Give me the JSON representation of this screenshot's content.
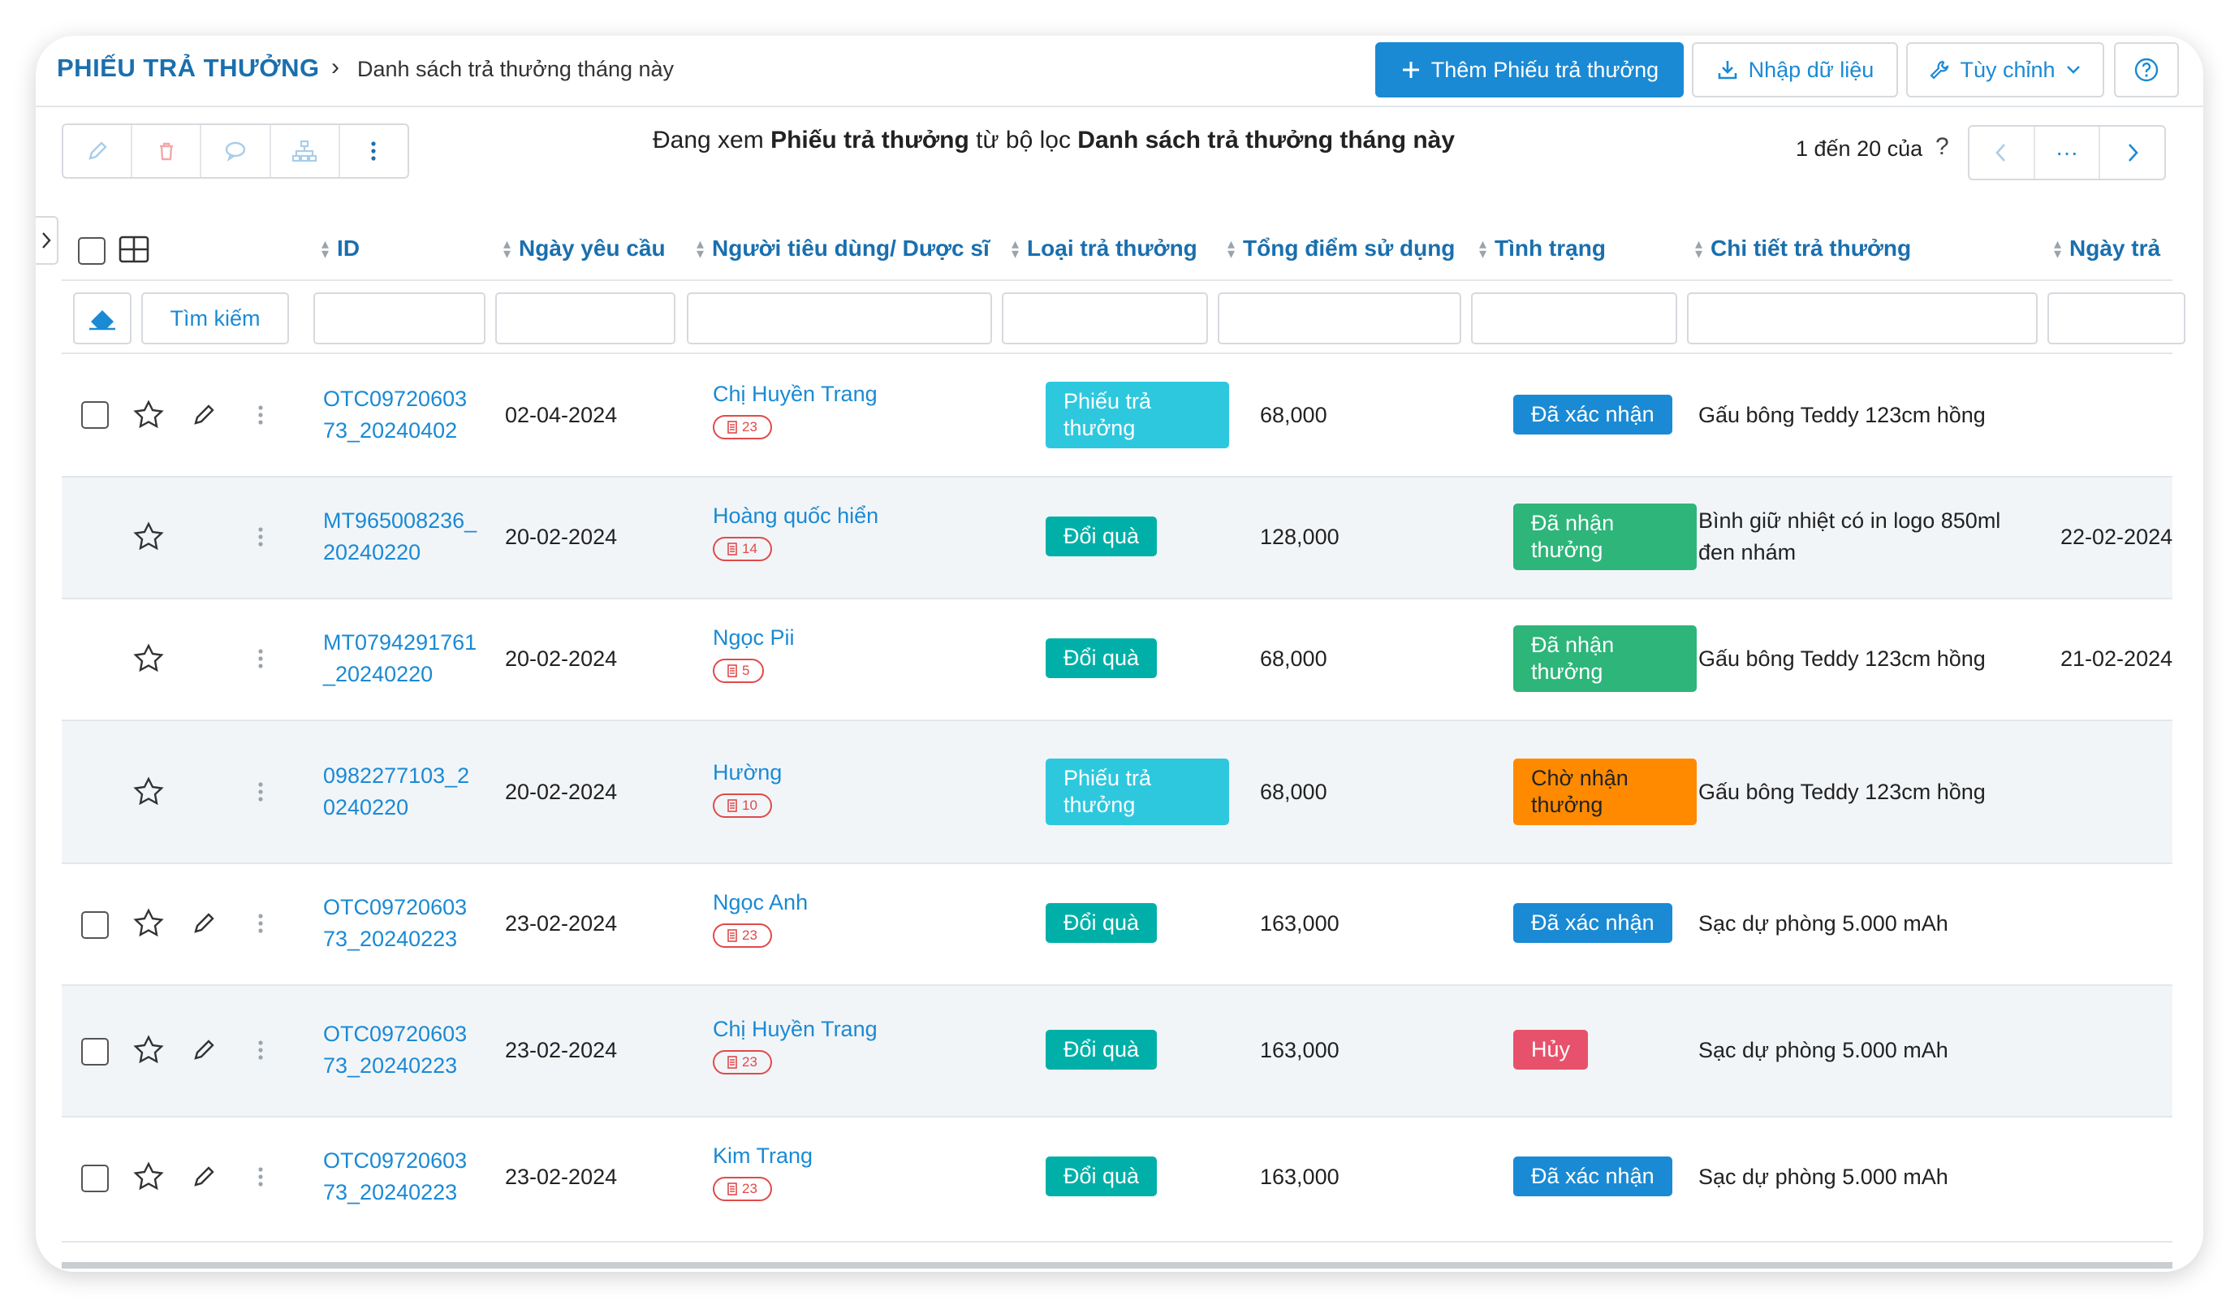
{
  "header": {
    "title": "PHIẾU TRẢ THƯỞNG",
    "breadcrumb": "Danh sách trả thưởng tháng này",
    "add_button": "Thêm Phiếu trả thưởng",
    "import_button": "Nhập dữ liệu",
    "customize_button": "Tùy chỉnh"
  },
  "toolbar": {
    "viewing_prefix": "Đang xem ",
    "viewing_entity": "Phiếu trả thưởng",
    "viewing_middle": " từ bộ lọc ",
    "viewing_filter": "Danh sách trả thưởng tháng này",
    "pager_text": "1 đến 20 của",
    "pager_question": "?",
    "pager_more": "···"
  },
  "columns": [
    "ID",
    "Ngày yêu cầu",
    "Người tiêu dùng/ Dược sĩ",
    "Loại trả thưởng",
    "Tổng điểm sử dụng",
    "Tình trạng",
    "Chi tiết trả thưởng",
    "Ngày trả"
  ],
  "filter": {
    "search_button": "Tìm kiếm"
  },
  "rows": [
    {
      "id": "OTC0972060373_20240402",
      "date": "02-04-2024",
      "name": "Chị Huyền Trang",
      "count": "23",
      "type": "Phiếu trả thưởng",
      "type_style": "cyan",
      "points": "68,000",
      "status": "Đã xác nhận",
      "status_style": "blue",
      "detail": "Gấu bông Teddy 123cm hồng",
      "paid": "",
      "checkbox": true,
      "edit": true
    },
    {
      "id": "MT965008236_20240220",
      "date": "20-02-2024",
      "name": "Hoàng quốc hiển",
      "count": "14",
      "type": "Đổi quà",
      "type_style": "teal",
      "points": "128,000",
      "status": "Đã nhận thưởng",
      "status_style": "green",
      "detail": "Bình giữ nhiệt có in logo 850ml đen nhám",
      "paid": "22-02-2024",
      "checkbox": false,
      "edit": false
    },
    {
      "id": "MT0794291761_20240220",
      "date": "20-02-2024",
      "name": "Ngọc Pii",
      "count": "5",
      "type": "Đổi quà",
      "type_style": "teal",
      "points": "68,000",
      "status": "Đã nhận thưởng",
      "status_style": "green",
      "detail": "Gấu bông Teddy 123cm hồng",
      "paid": "21-02-2024",
      "checkbox": false,
      "edit": false
    },
    {
      "id": "0982277103_20240220",
      "date": "20-02-2024",
      "name": "Hường",
      "count": "10",
      "type": "Phiếu trả thưởng",
      "type_style": "cyan",
      "points": "68,000",
      "status": "Chờ nhận thưởng",
      "status_style": "orange",
      "detail": "Gấu bông Teddy 123cm hồng",
      "paid": "",
      "checkbox": false,
      "edit": false
    },
    {
      "id": "OTC0972060373_20240223",
      "date": "23-02-2024",
      "name": "Ngọc Anh",
      "count": "23",
      "type": "Đổi quà",
      "type_style": "teal",
      "points": "163,000",
      "status": "Đã xác nhận",
      "status_style": "blue",
      "detail": "Sạc dự phòng 5.000 mAh",
      "paid": "",
      "checkbox": true,
      "edit": true
    },
    {
      "id": "OTC0972060373_20240223",
      "date": "23-02-2024",
      "name": "Chị Huyền Trang",
      "count": "23",
      "type": "Đổi quà",
      "type_style": "teal",
      "points": "163,000",
      "status": "Hủy",
      "status_style": "red",
      "detail": "Sạc dự phòng 5.000 mAh",
      "paid": "",
      "checkbox": true,
      "edit": true
    },
    {
      "id": "OTC0972060373_20240223",
      "date": "23-02-2024",
      "name": "Kim Trang",
      "count": "23",
      "type": "Đổi quà",
      "type_style": "teal",
      "points": "163,000",
      "status": "Đã xác nhận",
      "status_style": "blue",
      "detail": "Sạc dự phòng 5.000 mAh",
      "paid": "",
      "checkbox": true,
      "edit": true
    }
  ]
}
